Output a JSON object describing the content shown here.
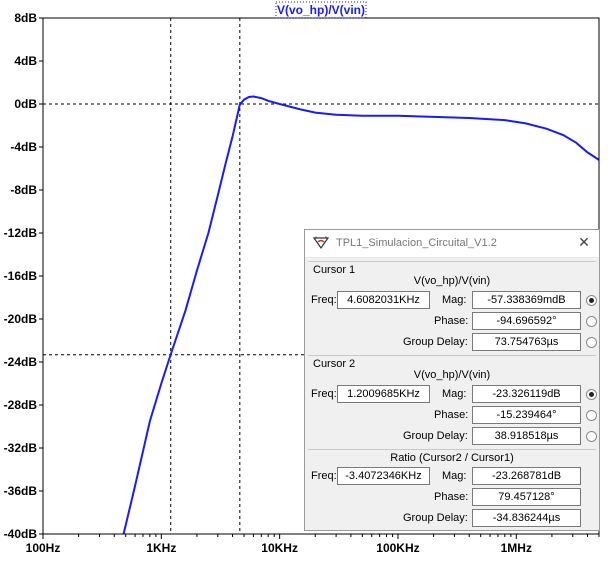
{
  "chart_data": {
    "type": "line",
    "title": "V(vo_hp)/V(vin)",
    "x_scale": "log",
    "xlim": [
      100,
      5000000
    ],
    "ylim": [
      -40,
      8
    ],
    "x_ticks": [
      {
        "value": 100,
        "label": "100Hz"
      },
      {
        "value": 1000,
        "label": "1KHz"
      },
      {
        "value": 10000,
        "label": "10KHz"
      },
      {
        "value": 100000,
        "label": "100KHz"
      },
      {
        "value": 1000000,
        "label": "1MHz"
      }
    ],
    "y_ticks": [
      {
        "value": 8,
        "label": "8dB"
      },
      {
        "value": 4,
        "label": "4dB"
      },
      {
        "value": 0,
        "label": "0dB"
      },
      {
        "value": -4,
        "label": "-4dB"
      },
      {
        "value": -8,
        "label": "-8dB"
      },
      {
        "value": -12,
        "label": "-12dB"
      },
      {
        "value": -16,
        "label": "-16dB"
      },
      {
        "value": -20,
        "label": "-20dB"
      },
      {
        "value": -24,
        "label": "-24dB"
      },
      {
        "value": -28,
        "label": "-28dB"
      },
      {
        "value": -32,
        "label": "-32dB"
      },
      {
        "value": -36,
        "label": "-36dB"
      },
      {
        "value": -40,
        "label": "-40dB"
      }
    ],
    "series": [
      {
        "name": "V(vo_hp)/V(vin)",
        "color": "#1a1aff",
        "points": [
          [
            480,
            -40
          ],
          [
            600,
            -35.5
          ],
          [
            800,
            -29.5
          ],
          [
            1000,
            -26
          ],
          [
            1200,
            -23.3
          ],
          [
            1600,
            -19.2
          ],
          [
            2000,
            -15.5
          ],
          [
            2500,
            -12
          ],
          [
            3000,
            -8.5
          ],
          [
            3500,
            -5.5
          ],
          [
            4000,
            -3
          ],
          [
            4608,
            -0.06
          ],
          [
            5000,
            0.4
          ],
          [
            5500,
            0.65
          ],
          [
            6000,
            0.7
          ],
          [
            7000,
            0.55
          ],
          [
            8000,
            0.3
          ],
          [
            10000,
            0
          ],
          [
            15000,
            -0.5
          ],
          [
            20000,
            -0.8
          ],
          [
            30000,
            -1
          ],
          [
            50000,
            -1.1
          ],
          [
            100000,
            -1.1
          ],
          [
            200000,
            -1.2
          ],
          [
            400000,
            -1.3
          ],
          [
            800000,
            -1.5
          ],
          [
            1200000,
            -1.8
          ],
          [
            1800000,
            -2.3
          ],
          [
            2500000,
            -2.9
          ],
          [
            3200000,
            -3.6
          ],
          [
            4000000,
            -4.5
          ],
          [
            5000000,
            -5.2
          ]
        ]
      }
    ],
    "cursors": [
      {
        "freq": 4608.2,
        "db": -0.057
      },
      {
        "freq": 1200.97,
        "db": -23.326
      }
    ],
    "grid": true,
    "colors": {
      "trace": "#1a1aff",
      "background": "#ffffff",
      "axes": "#000000",
      "grid": "#000000"
    }
  },
  "dialog": {
    "title": "TPL1_Simulacion_Circuital_V1.2",
    "close_icon": "close-icon",
    "app_icon": "ltspice-icon",
    "cursor1": {
      "legend": "Cursor 1",
      "expr": "V(vo_hp)/V(vin)",
      "freq_label": "Freq:",
      "freq": "4.6082031KHz",
      "mag_label": "Mag:",
      "mag": "-57.338369mdB",
      "phase_label": "Phase:",
      "phase": "-94.696592°",
      "delay_label": "Group Delay:",
      "delay": "73.754763µs",
      "selected": "mag"
    },
    "cursor2": {
      "legend": "Cursor 2",
      "expr": "V(vo_hp)/V(vin)",
      "freq_label": "Freq:",
      "freq": "1.2009685KHz",
      "mag_label": "Mag:",
      "mag": "-23.326119dB",
      "phase_label": "Phase:",
      "phase": "-15.239464°",
      "delay_label": "Group Delay:",
      "delay": "38.918518µs",
      "selected": "mag"
    },
    "ratio": {
      "legend": "Ratio (Cursor2 / Cursor1)",
      "freq_label": "Freq:",
      "freq": "-3.4072346KHz",
      "mag_label": "Mag:",
      "mag": "-23.268781dB",
      "phase_label": "Phase:",
      "phase": "79.457128°",
      "delay_label": "Group Delay:",
      "delay": "-34.836244µs"
    }
  }
}
